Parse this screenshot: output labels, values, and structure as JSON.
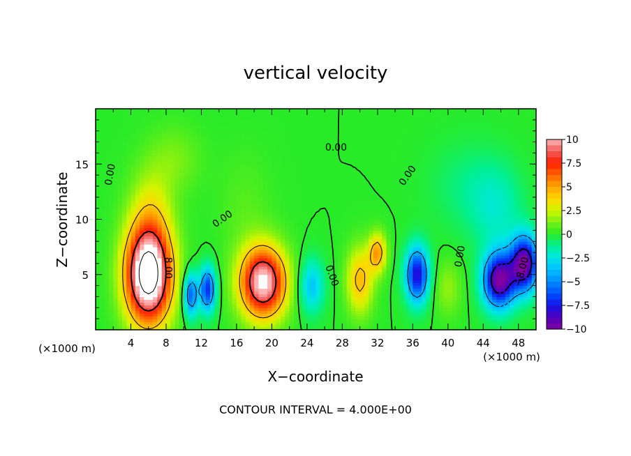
{
  "chart_data": {
    "type": "heatmap",
    "title": "vertical velocity",
    "xlabel": "X−coordinate",
    "ylabel": "Z−coordinate",
    "x_unit_left": "(×1000 m)",
    "x_unit_right": "(×1000 m)",
    "footer": "CONTOUR INTERVAL = 4.000E+00",
    "xlim": [
      0,
      50
    ],
    "ylim": [
      0,
      20
    ],
    "x_ticks": [
      4,
      8,
      12,
      16,
      20,
      24,
      28,
      32,
      36,
      40,
      44,
      48
    ],
    "y_ticks": [
      5,
      10,
      15
    ],
    "contour_labels": [
      {
        "text": "0.00",
        "x": 2.0,
        "y": 14.0,
        "rotate": -80
      },
      {
        "text": "0.00",
        "x": 14.6,
        "y": 9.8,
        "rotate": -35
      },
      {
        "text": "0.00",
        "x": 27.3,
        "y": 16.2,
        "rotate": 0
      },
      {
        "text": "0.00",
        "x": 35.7,
        "y": 13.8,
        "rotate": -55
      },
      {
        "text": "0.00",
        "x": 26.5,
        "y": 4.8,
        "rotate": 70
      },
      {
        "text": "8.00",
        "x": 7.9,
        "y": 5.6,
        "rotate": 90
      },
      {
        "text": "0.00",
        "x": 41.7,
        "y": 6.6,
        "rotate": -80
      },
      {
        "text": "−8.00",
        "x": 48.7,
        "y": 5.2,
        "rotate": -75
      }
    ],
    "colorbar": {
      "range": [
        -10,
        10
      ],
      "tick_labels": [
        "10",
        "7.5",
        "5",
        "2.5",
        "0",
        "−2.5",
        "−5",
        "−7.5",
        "−10"
      ],
      "tick_values": [
        10,
        7.5,
        5,
        2.5,
        0,
        -2.5,
        -5,
        -7.5,
        -10
      ]
    },
    "cells": [
      {
        "x": 6,
        "y": 5,
        "sx": 2.6,
        "sy": 4.4,
        "v": 14
      },
      {
        "x": 6.3,
        "y": 11,
        "sx": 2.5,
        "sy": 4,
        "v": 2.2
      },
      {
        "x": 9,
        "y": 15.5,
        "sx": 3,
        "sy": 3,
        "v": 1.2
      },
      {
        "x": 10.8,
        "y": 3.2,
        "sx": 0.8,
        "sy": 2,
        "v": -6
      },
      {
        "x": 12.7,
        "y": 3.7,
        "sx": 0.9,
        "sy": 2,
        "v": -7
      },
      {
        "x": 19,
        "y": 4.3,
        "sx": 2.6,
        "sy": 3.2,
        "v": 11
      },
      {
        "x": 24.5,
        "y": 4,
        "sx": 1.4,
        "sy": 2.4,
        "v": -3.5
      },
      {
        "x": 30,
        "y": 4.5,
        "sx": 1.5,
        "sy": 3,
        "v": 4.5
      },
      {
        "x": 32,
        "y": 7,
        "sx": 1,
        "sy": 1.8,
        "v": 5
      },
      {
        "x": 36.5,
        "y": 5,
        "sx": 1.3,
        "sy": 2.5,
        "v": -8
      },
      {
        "x": 40,
        "y": 3.8,
        "sx": 1.5,
        "sy": 2.5,
        "v": 1.6
      },
      {
        "x": 45.8,
        "y": 4.5,
        "sx": 1.8,
        "sy": 2.5,
        "v": -10
      },
      {
        "x": 48.7,
        "y": 6,
        "sx": 1.6,
        "sy": 2.5,
        "v": -10
      },
      {
        "x": 45.5,
        "y": 11,
        "sx": 3,
        "sy": 4,
        "v": -1.8
      },
      {
        "x": 42,
        "y": 13,
        "sx": 4,
        "sy": 4,
        "v": -0.9
      },
      {
        "x": 17,
        "y": 11,
        "sx": 3,
        "sy": 5,
        "v": 0.7
      }
    ]
  }
}
